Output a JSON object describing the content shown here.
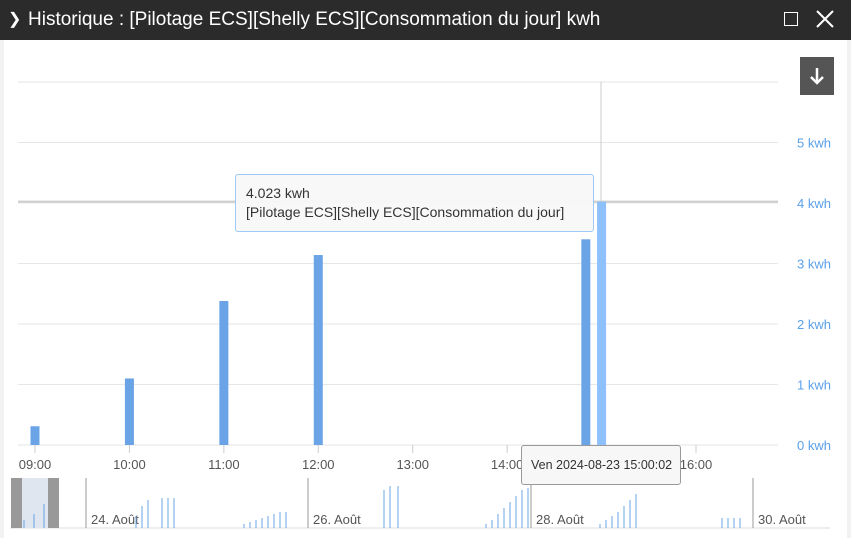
{
  "window": {
    "title": "Historique : [Pilotage ECS][Shelly ECS][Consommation du jour] kwh"
  },
  "colors": {
    "series": "#6aa4e6",
    "series_hover": "#8ec1fb",
    "axis_label": "#5aa0ea"
  },
  "chart_data": {
    "type": "bar",
    "x_axis_ticks": [
      "09:00",
      "10:00",
      "11:00",
      "12:00",
      "13:00",
      "14:00",
      "15:00",
      "16:00"
    ],
    "y_ticks": [
      "0 kwh",
      "1 kwh",
      "2 kwh",
      "3 kwh",
      "4 kwh",
      "5 kwh"
    ],
    "ylim": [
      0,
      6
    ],
    "series": [
      {
        "name": "[Pilotage ECS][Shelly ECS][Consommation du jour]",
        "times": [
          "09:00",
          "10:00",
          "11:00",
          "12:00",
          "14:50",
          "15:00"
        ],
        "values": [
          0.31,
          1.1,
          2.38,
          3.14,
          3.4,
          4.023
        ]
      }
    ],
    "navigator_labels": [
      "24. Août",
      "26. Août",
      "28. Août",
      "30. Août"
    ],
    "tooltip": {
      "value_text": "4.023 kwh",
      "series_text": "[Pilotage ECS][Shelly ECS][Consommation du jour]",
      "time_text": "Ven 2024-08-23 15:00:02"
    }
  }
}
